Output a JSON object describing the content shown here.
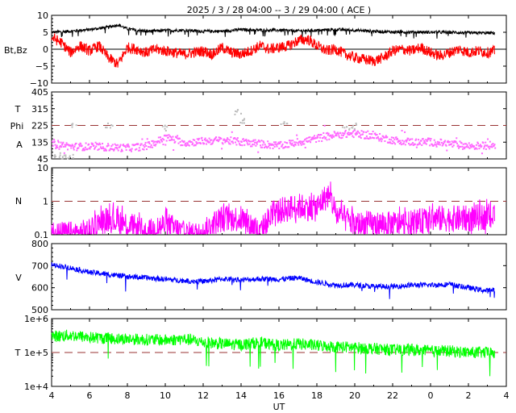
{
  "title": "2025 /  3 / 28   04:00 --  3 / 29   04:00 ( ACE )",
  "xlabel": "UT",
  "x_ticks": [
    "4",
    "6",
    "8",
    "10",
    "12",
    "14",
    "16",
    "18",
    "20",
    "22",
    "0",
    "2",
    "4"
  ],
  "x_range_hours_ut": [
    4,
    28
  ],
  "data_end_hour_ut": 27.4,
  "chart_data": [
    {
      "type": "line",
      "id": "magnetic-field",
      "ylabel": "Bt,Bz",
      "ylim": [
        -10,
        10
      ],
      "y_ticks": [
        "10",
        "5",
        "0",
        "−5",
        "−10"
      ],
      "y_tick_values": [
        10,
        5,
        0,
        -5,
        -10
      ],
      "reference_line": 0,
      "series": [
        {
          "id": "bt",
          "color": "#000000",
          "points": [
            [
              4,
              5.0
            ],
            [
              5,
              5.3
            ],
            [
              6,
              5.8
            ],
            [
              7,
              6.5
            ],
            [
              7.5,
              7.2
            ],
            [
              8,
              6.0
            ],
            [
              9,
              5.3
            ],
            [
              10,
              5.5
            ],
            [
              11,
              5.6
            ],
            [
              12,
              5.3
            ],
            [
              13,
              5.3
            ],
            [
              14,
              5.8
            ],
            [
              15,
              5.6
            ],
            [
              16,
              5.6
            ],
            [
              17,
              5.4
            ],
            [
              18,
              5.6
            ],
            [
              19,
              5.8
            ],
            [
              20,
              5.6
            ],
            [
              21,
              5.3
            ],
            [
              22,
              5.1
            ],
            [
              23,
              5.1
            ],
            [
              24,
              5.0
            ],
            [
              25,
              5.0
            ],
            [
              26,
              4.8
            ],
            [
              27,
              4.8
            ],
            [
              27.4,
              4.8
            ]
          ]
        },
        {
          "id": "bz",
          "color": "#ff0000",
          "points": [
            [
              4,
              3.5
            ],
            [
              4.5,
              2.0
            ],
            [
              5,
              -1.0
            ],
            [
              5.5,
              1.0
            ],
            [
              6,
              -0.5
            ],
            [
              6.5,
              1.0
            ],
            [
              7,
              -2.5
            ],
            [
              7.5,
              -4.5
            ],
            [
              8,
              0.5
            ],
            [
              8.5,
              0.0
            ],
            [
              9,
              -1.0
            ],
            [
              9.5,
              0.0
            ],
            [
              10,
              -0.5
            ],
            [
              10.5,
              -1.0
            ],
            [
              11,
              -1.5
            ],
            [
              11.5,
              -1.0
            ],
            [
              12,
              -0.5
            ],
            [
              12.5,
              -1.5
            ],
            [
              13,
              0.5
            ],
            [
              13.5,
              -1.0
            ],
            [
              14,
              -1.5
            ],
            [
              14.5,
              -0.5
            ],
            [
              15,
              1.0
            ],
            [
              15.5,
              0.0
            ],
            [
              16,
              0.5
            ],
            [
              16.5,
              1.0
            ],
            [
              17,
              2.5
            ],
            [
              17.5,
              3.0
            ],
            [
              18,
              1.0
            ],
            [
              18.5,
              -0.5
            ],
            [
              19,
              0.0
            ],
            [
              19.5,
              -1.5
            ],
            [
              20,
              -2.5
            ],
            [
              20.5,
              -3.0
            ],
            [
              21,
              -3.5
            ],
            [
              21.5,
              -2.5
            ],
            [
              22,
              -0.5
            ],
            [
              22.5,
              0.0
            ],
            [
              23,
              -0.5
            ],
            [
              23.5,
              0.5
            ],
            [
              24,
              -1.0
            ],
            [
              24.5,
              -2.0
            ],
            [
              25,
              -1.0
            ],
            [
              25.5,
              0.0
            ],
            [
              26,
              -1.0
            ],
            [
              26.5,
              -0.5
            ],
            [
              27,
              -1.0
            ],
            [
              27.4,
              -0.5
            ]
          ]
        }
      ]
    },
    {
      "type": "scatter",
      "id": "field-angle",
      "ylabel_lines": [
        "T",
        "Phi",
        "A"
      ],
      "ylim": [
        45,
        405
      ],
      "y_ticks": [
        "405",
        "315",
        "225",
        "135",
        "45"
      ],
      "y_tick_values": [
        405,
        315,
        225,
        135,
        45
      ],
      "reference_line": 225,
      "series": [
        {
          "id": "phi-magenta",
          "color": "#ff66ff",
          "points": [
            [
              4,
              135
            ],
            [
              5,
              115
            ],
            [
              6,
              115
            ],
            [
              7,
              112
            ],
            [
              8,
              108
            ],
            [
              9,
              118
            ],
            [
              10,
              165
            ],
            [
              11,
              135
            ],
            [
              12,
              145
            ],
            [
              13,
              150
            ],
            [
              14,
              140
            ],
            [
              15,
              130
            ],
            [
              16,
              120
            ],
            [
              17,
              140
            ],
            [
              18,
              160
            ],
            [
              19,
              180
            ],
            [
              20,
              185
            ],
            [
              21,
              170
            ],
            [
              22,
              150
            ],
            [
              23,
              140
            ],
            [
              24,
              140
            ],
            [
              25,
              130
            ],
            [
              26,
              118
            ],
            [
              27,
              122
            ],
            [
              27.4,
              125
            ]
          ]
        },
        {
          "id": "phi-grey",
          "color": "#bbbbbb",
          "points": [
            [
              4.3,
              70
            ],
            [
              4.6,
              55
            ],
            [
              4.9,
              65
            ],
            [
              5.2,
              230
            ],
            [
              7,
              230
            ],
            [
              10,
              215
            ],
            [
              13.8,
              300
            ],
            [
              14,
              250
            ],
            [
              16.2,
              240
            ],
            [
              19.5,
              215
            ],
            [
              20,
              225
            ]
          ]
        }
      ]
    },
    {
      "type": "line",
      "id": "density",
      "ylabel": "N",
      "yscale": "log",
      "ylim": [
        0.1,
        10
      ],
      "y_ticks": [
        "10",
        "1",
        "0.1"
      ],
      "y_tick_values": [
        10,
        1,
        0.1
      ],
      "reference_line": 1,
      "series": [
        {
          "id": "n",
          "color": "#ff00ff",
          "points": [
            [
              4,
              0.1
            ],
            [
              5,
              0.1
            ],
            [
              6,
              0.12
            ],
            [
              7,
              0.3
            ],
            [
              8,
              0.2
            ],
            [
              9,
              0.1
            ],
            [
              10,
              0.2
            ],
            [
              11,
              0.1
            ],
            [
              12,
              0.1
            ],
            [
              13,
              0.3
            ],
            [
              14,
              0.3
            ],
            [
              15,
              0.1
            ],
            [
              16,
              0.5
            ],
            [
              17,
              0.7
            ],
            [
              18,
              0.6
            ],
            [
              18.6,
              1.5
            ],
            [
              19,
              0.4
            ],
            [
              20,
              0.2
            ],
            [
              21,
              0.2
            ],
            [
              22,
              0.2
            ],
            [
              23,
              0.2
            ],
            [
              24,
              0.3
            ],
            [
              25,
              0.3
            ],
            [
              26,
              0.3
            ],
            [
              27,
              0.35
            ],
            [
              27.4,
              0.3
            ]
          ]
        }
      ]
    },
    {
      "type": "line",
      "id": "speed",
      "ylabel": "V",
      "ylim": [
        500,
        800
      ],
      "y_ticks": [
        "800",
        "700",
        "600",
        "500"
      ],
      "y_tick_values": [
        800,
        700,
        600,
        500
      ],
      "series": [
        {
          "id": "v",
          "color": "#0000ff",
          "points": [
            [
              4,
              705
            ],
            [
              5,
              690
            ],
            [
              6,
              670
            ],
            [
              7,
              660
            ],
            [
              8,
              650
            ],
            [
              9,
              645
            ],
            [
              10,
              638
            ],
            [
              11,
              632
            ],
            [
              12,
              628
            ],
            [
              13,
              640
            ],
            [
              14,
              635
            ],
            [
              15,
              640
            ],
            [
              16,
              638
            ],
            [
              17,
              645
            ],
            [
              18,
              625
            ],
            [
              19,
              612
            ],
            [
              20,
              612
            ],
            [
              21,
              605
            ],
            [
              22,
              605
            ],
            [
              23,
              612
            ],
            [
              24,
              612
            ],
            [
              25,
              615
            ],
            [
              26,
              600
            ],
            [
              27,
              585
            ],
            [
              27.4,
              595
            ]
          ]
        }
      ]
    },
    {
      "type": "line",
      "id": "temperature",
      "ylabel": "T",
      "yscale": "log",
      "ylim": [
        10000,
        1000000
      ],
      "y_ticks": [
        "1e+6",
        "1e+5",
        "1e+4"
      ],
      "y_tick_values": [
        1000000,
        100000,
        10000
      ],
      "reference_line": 100000,
      "series": [
        {
          "id": "t",
          "color": "#00ff00",
          "points": [
            [
              4,
              300000
            ],
            [
              5,
              320000
            ],
            [
              6,
              280000
            ],
            [
              7,
              260000
            ],
            [
              8,
              250000
            ],
            [
              9,
              240000
            ],
            [
              10,
              230000
            ],
            [
              11,
              250000
            ],
            [
              12,
              200000
            ],
            [
              13,
              180000
            ],
            [
              14,
              170000
            ],
            [
              15,
              200000
            ],
            [
              16,
              160000
            ],
            [
              17,
              180000
            ],
            [
              18,
              160000
            ],
            [
              19,
              150000
            ],
            [
              20,
              140000
            ],
            [
              21,
              130000
            ],
            [
              22,
              120000
            ],
            [
              23,
              120000
            ],
            [
              24,
              110000
            ],
            [
              25,
              110000
            ],
            [
              26,
              100000
            ],
            [
              27,
              100000
            ],
            [
              27.4,
              90000
            ]
          ]
        }
      ]
    }
  ],
  "colors": {
    "axis": "#000000",
    "reference_dash": "#993333"
  }
}
